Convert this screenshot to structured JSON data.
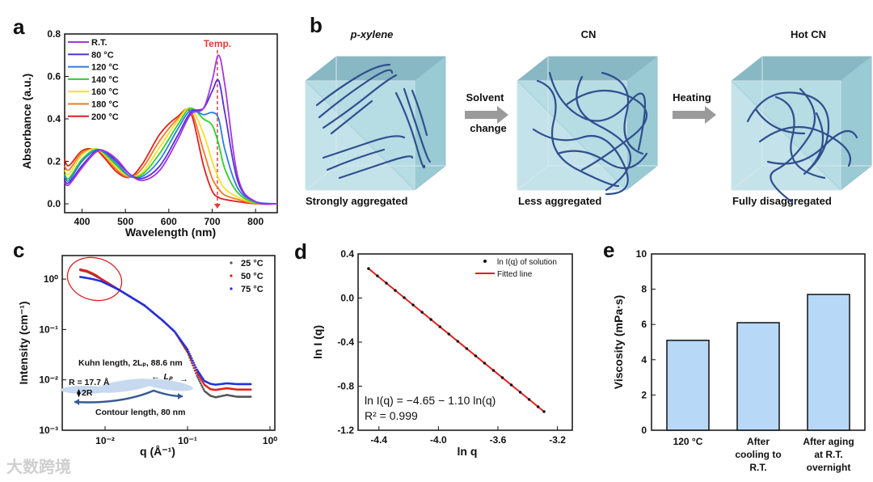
{
  "panels": {
    "a": "a",
    "b": "b",
    "c": "c",
    "d": "d",
    "e": "e"
  },
  "schematic": {
    "states": [
      {
        "title": "p-xylene",
        "caption": "Strongly aggregated"
      },
      {
        "title": "CN",
        "caption": "Less aggregated"
      },
      {
        "title": "Hot CN",
        "caption": "Fully disaggregated"
      }
    ],
    "arrow1": [
      "Solvent",
      "change"
    ],
    "arrow2": "Heating",
    "colors": {
      "box": "#a9d6df",
      "chain": "#2f4f8f"
    }
  },
  "watermark": "大数跨境",
  "chart_data": [
    {
      "id": "a",
      "type": "line",
      "xlabel": "Wavelength (nm)",
      "ylabel": "Absorbance (a.u.)",
      "xlim": [
        360,
        850
      ],
      "ylim": [
        0,
        0.8
      ],
      "xticks": [
        400,
        500,
        600,
        700,
        800
      ],
      "yticks": [
        "0.0",
        "0.2",
        "0.4",
        "0.6",
        "0.8"
      ],
      "annotation": {
        "text": "Temp.",
        "x": 712,
        "color": "#e23b3b"
      },
      "x": [
        360,
        370,
        400,
        430,
        450,
        480,
        510,
        540,
        580,
        620,
        650,
        680,
        700,
        715,
        730,
        760,
        800,
        850
      ],
      "series": [
        {
          "name": "R.T.",
          "color": "#a436e0",
          "values": [
            0.1,
            0.09,
            0.17,
            0.24,
            0.25,
            0.21,
            0.14,
            0.11,
            0.16,
            0.3,
            0.42,
            0.45,
            0.58,
            0.7,
            0.55,
            0.12,
            0.01,
            0
          ]
        },
        {
          "name": "80 °C",
          "color": "#5a2ed6",
          "values": [
            0.11,
            0.1,
            0.18,
            0.245,
            0.25,
            0.2,
            0.14,
            0.12,
            0.18,
            0.32,
            0.43,
            0.45,
            0.53,
            0.58,
            0.42,
            0.1,
            0.01,
            0
          ]
        },
        {
          "name": "120 °C",
          "color": "#2a7fe0",
          "values": [
            0.13,
            0.11,
            0.2,
            0.25,
            0.245,
            0.19,
            0.13,
            0.13,
            0.21,
            0.35,
            0.44,
            0.42,
            0.43,
            0.4,
            0.25,
            0.07,
            0.01,
            0
          ]
        },
        {
          "name": "140 °C",
          "color": "#2fcf2f",
          "values": [
            0.14,
            0.12,
            0.21,
            0.255,
            0.24,
            0.18,
            0.13,
            0.14,
            0.24,
            0.37,
            0.45,
            0.4,
            0.37,
            0.28,
            0.16,
            0.05,
            0.005,
            0
          ]
        },
        {
          "name": "160 °C",
          "color": "#f2e12a",
          "values": [
            0.16,
            0.14,
            0.23,
            0.26,
            0.235,
            0.17,
            0.13,
            0.15,
            0.27,
            0.39,
            0.45,
            0.33,
            0.2,
            0.12,
            0.07,
            0.03,
            0.005,
            0
          ]
        },
        {
          "name": "180 °C",
          "color": "#f07a22",
          "values": [
            0.18,
            0.16,
            0.24,
            0.255,
            0.23,
            0.16,
            0.125,
            0.17,
            0.3,
            0.4,
            0.44,
            0.25,
            0.12,
            0.07,
            0.04,
            0.02,
            0,
            0
          ]
        },
        {
          "name": "200 °C",
          "color": "#e0201e",
          "values": [
            0.21,
            0.18,
            0.25,
            0.255,
            0.22,
            0.15,
            0.125,
            0.19,
            0.33,
            0.41,
            0.43,
            0.18,
            0.06,
            0.03,
            0.02,
            0.01,
            0,
            0
          ]
        }
      ]
    },
    {
      "id": "c",
      "type": "scatter",
      "xscale": "log",
      "yscale": "log",
      "xlabel": "q (Å⁻¹)",
      "ylabel": "Intensity (cm⁻¹)",
      "xlim": [
        0.003,
        1
      ],
      "ylim": [
        0.001,
        3
      ],
      "xticks": [
        "10⁻²",
        "10⁻¹",
        "10⁰"
      ],
      "yticks": [
        "10⁻³",
        "10⁻²",
        "10⁻¹",
        "10⁰"
      ],
      "annotations": {
        "kuhn": "Kuhn length, 2Lₚ, 88.6 nm",
        "radius": "R = 17.7 Å",
        "diameter": "2R",
        "lp": "Lₚ",
        "contour": "Contour length, 80 nm"
      },
      "x": [
        0.005,
        0.006,
        0.007,
        0.008,
        0.009,
        0.01,
        0.012,
        0.015,
        0.02,
        0.03,
        0.05,
        0.07,
        0.1,
        0.13,
        0.16,
        0.19,
        0.22,
        0.3,
        0.4,
        0.6
      ],
      "series": [
        {
          "name": "25 °C",
          "color": "#555555",
          "values": [
            1.5,
            1.4,
            1.25,
            1.1,
            1.0,
            0.9,
            0.75,
            0.6,
            0.45,
            0.3,
            0.15,
            0.09,
            0.035,
            0.012,
            0.006,
            0.0048,
            0.0045,
            0.005,
            0.0046,
            0.0046
          ]
        },
        {
          "name": "50 °C",
          "color": "#e02020",
          "values": [
            1.55,
            1.45,
            1.3,
            1.15,
            1.0,
            0.9,
            0.75,
            0.6,
            0.45,
            0.3,
            0.15,
            0.09,
            0.037,
            0.014,
            0.008,
            0.0065,
            0.0063,
            0.0068,
            0.0064,
            0.0064
          ]
        },
        {
          "name": "75 °C",
          "color": "#2030e0",
          "values": [
            1.1,
            1.05,
            1.0,
            0.95,
            0.9,
            0.83,
            0.72,
            0.6,
            0.45,
            0.3,
            0.15,
            0.09,
            0.04,
            0.016,
            0.0095,
            0.0083,
            0.008,
            0.0085,
            0.0082,
            0.0082
          ]
        }
      ]
    },
    {
      "id": "d",
      "type": "scatter",
      "xlabel": "ln q",
      "ylabel": "ln I (q)",
      "xlim": [
        -4.54,
        -3.1
      ],
      "ylim": [
        -1.2,
        0.4
      ],
      "xticks": [
        "-4.4",
        "-4.0",
        "-3.6",
        "-3.2"
      ],
      "yticks": [
        "-1.2",
        "-0.8",
        "-0.4",
        "0.0",
        "0.4"
      ],
      "legend": [
        "ln I(q) of solution",
        "Fitted line"
      ],
      "equation": "ln I(q) = −4.65 − 1.10 ln(q)",
      "r2": "R² = 0.999",
      "fit": {
        "intercept": -4.65,
        "slope": -1.1,
        "color": "#e02020"
      },
      "x": [
        -4.47,
        -4.41,
        -4.35,
        -4.29,
        -4.23,
        -4.17,
        -4.11,
        -4.05,
        -3.99,
        -3.93,
        -3.87,
        -3.81,
        -3.75,
        -3.69,
        -3.63,
        -3.57,
        -3.51,
        -3.45,
        -3.39,
        -3.33,
        -3.29
      ],
      "values": [
        0.267,
        0.201,
        0.135,
        0.069,
        0.003,
        -0.063,
        -0.129,
        -0.195,
        -0.261,
        -0.327,
        -0.393,
        -0.459,
        -0.525,
        -0.591,
        -0.657,
        -0.723,
        -0.789,
        -0.855,
        -0.921,
        -0.987,
        -1.031
      ]
    },
    {
      "id": "e",
      "type": "bar",
      "ylabel": "Viscosity (mPa·s)",
      "ylim": [
        0,
        10
      ],
      "yticks": [
        "0",
        "2",
        "4",
        "6",
        "8",
        "10"
      ],
      "categories": [
        [
          "120 °C"
        ],
        [
          "After",
          "cooling to",
          "R.T."
        ],
        [
          "After aging",
          "at R.T.",
          "overnight"
        ]
      ],
      "values": [
        5.1,
        6.1,
        7.7
      ],
      "color": "#b7d8f7"
    }
  ]
}
